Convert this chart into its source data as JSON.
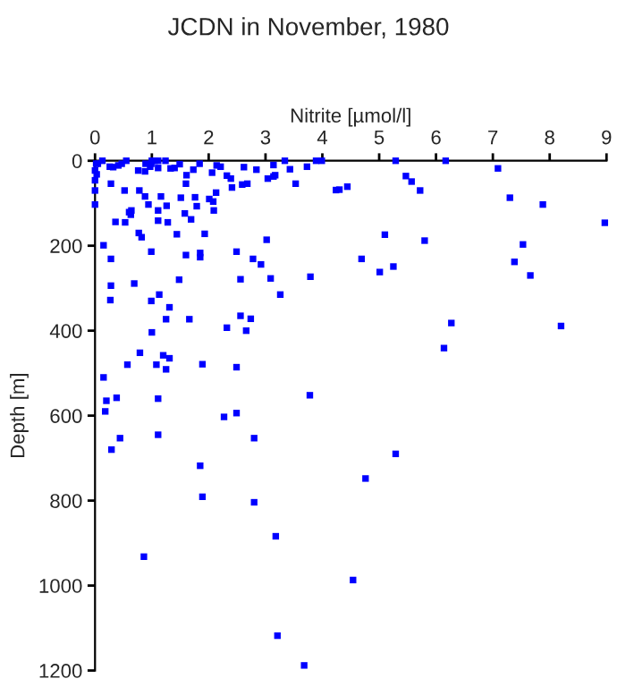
{
  "chart_data": {
    "type": "scatter",
    "title": "JCDN in November, 1980",
    "xlabel": "Nitrite [µmol/l]",
    "ylabel": "Depth [m]",
    "xlim": [
      0,
      9
    ],
    "xticks": [
      0,
      1,
      2,
      3,
      4,
      5,
      6,
      7,
      8,
      9
    ],
    "ylim": [
      1200,
      0
    ],
    "yticks": [
      0,
      200,
      400,
      600,
      800,
      1000,
      1200
    ],
    "marker": "square",
    "grid": false,
    "legend": false,
    "series": [
      {
        "color": "#0000ff",
        "x": [
          0.13,
          0.02,
          0.05,
          0,
          0.03,
          0,
          0,
          0,
          0.26,
          0.32,
          0.28,
          0.41,
          0.47,
          0.55,
          0.52,
          0.36,
          0.53,
          0.6,
          0.63,
          0.64,
          0.78,
          0.77,
          0.82,
          0.76,
          0.88,
          0.89,
          0.97,
          0.99,
          1,
          1.05,
          1.11,
          1.11,
          0.88,
          0.94,
          1.16,
          1.11,
          1.11,
          1.26,
          1.28,
          1.24,
          1.33,
          1.4,
          1.49,
          1.61,
          1.6,
          1.51,
          1.58,
          1.44,
          1.73,
          1.84,
          1.76,
          1.79,
          1.69,
          1.93,
          2.06,
          2.14,
          2.01,
          2.08,
          2.13,
          2.09,
          2.21,
          2.32,
          2.39,
          2.41,
          2.59,
          2.68,
          2.62,
          2.84,
          3.04,
          3.14,
          3.17,
          3.14,
          3.43,
          3.53,
          3.34,
          3.73,
          3.89,
          3.99,
          4.24,
          3.02,
          0.15,
          0.28,
          0.28,
          0.27,
          0.99,
          0.69,
          0.99,
          1.13,
          1.31,
          1.48,
          1.6,
          1.85,
          1.85,
          1.25,
          1.66,
          2.49,
          2.56,
          2.78,
          2.92,
          3.09,
          3.26,
          3.79,
          2.32,
          2.56,
          2.66,
          2.74,
          1,
          0.79,
          0.57,
          1.08,
          1.2,
          1.31,
          1.25,
          1.89,
          2.49,
          0.15,
          0.2,
          0.38,
          1.11,
          0.18,
          2.27,
          2.49,
          3.78,
          0.44,
          0.29,
          1.11,
          2.8,
          1.85,
          1.89,
          2.8,
          3.18,
          0.86,
          3.21,
          3.68,
          5.29,
          6.17,
          7.09,
          4.3,
          4.44,
          5.47,
          5.57,
          5.72,
          7.3,
          7.88,
          8.97,
          5.1,
          5.8,
          7.53,
          4.69,
          5.01,
          5.25,
          7.38,
          7.66,
          6.27,
          8.2,
          6.14,
          5.29,
          4.76,
          4.54
        ],
        "values": [
          0,
          7,
          7,
          23,
          32,
          46,
          70,
          103,
          14,
          15,
          54,
          11,
          7,
          0,
          70,
          144,
          145,
          121,
          127,
          117,
          70,
          170,
          180,
          23,
          25,
          7,
          14,
          7,
          0,
          0,
          0,
          17,
          84,
          103,
          84,
          117,
          141,
          106,
          145,
          0,
          18,
          17,
          8,
          34,
          54,
          87,
          124,
          173,
          21,
          7,
          86,
          107,
          138,
          172,
          28,
          11,
          90,
          96,
          75,
          117,
          14,
          35,
          42,
          63,
          56,
          54,
          15,
          21,
          42,
          37,
          34,
          10,
          20,
          54,
          0,
          14,
          0,
          0,
          69,
          186,
          199,
          231,
          294,
          328,
          214,
          289,
          330,
          315,
          345,
          280,
          222,
          217,
          227,
          373,
          373,
          214,
          279,
          231,
          244,
          277,
          315,
          273,
          393,
          365,
          400,
          372,
          404,
          452,
          480,
          480,
          458,
          465,
          491,
          479,
          486,
          510,
          565,
          558,
          560,
          590,
          603,
          594,
          552,
          653,
          680,
          645,
          653,
          718,
          791,
          804,
          884,
          932,
          1118,
          1188,
          0,
          0,
          18,
          68,
          61,
          36,
          49,
          70,
          87,
          103,
          146,
          174,
          188,
          197,
          231,
          262,
          249,
          238,
          270,
          382,
          389,
          441,
          690,
          748,
          987
        ]
      }
    ]
  }
}
